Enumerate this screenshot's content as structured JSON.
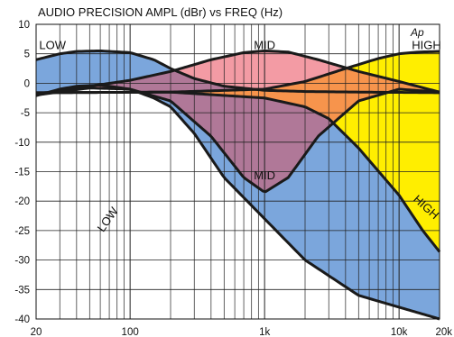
{
  "chart_data": {
    "type": "area",
    "title": "AUDIO PRECISION  AMPL (dBr) vs FREQ (Hz)",
    "logo": "Ap",
    "x_scale": "log",
    "xlim": [
      20,
      20000
    ],
    "ylim": [
      -40,
      10
    ],
    "x_tick_labels": [
      {
        "value": 20,
        "label": "20"
      },
      {
        "value": 100,
        "label": "100"
      },
      {
        "value": 1000,
        "label": "1k"
      },
      {
        "value": 10000,
        "label": "10k"
      },
      {
        "value": 20000,
        "label": "20k"
      }
    ],
    "y_ticks": [
      10,
      5,
      0,
      -5,
      -10,
      -15,
      -20,
      -25,
      -30,
      -35,
      -40
    ],
    "grid": true,
    "colors": {
      "low": "#7ba6dc",
      "mid": "#f39ba4",
      "high": "#ffee00",
      "low_mid_overlap": "#b07898",
      "mid_high_overlap": "#f7944c",
      "curve": "#1a1a1a"
    },
    "series": [
      {
        "name": "LOW",
        "upper": [
          [
            20,
            4.0
          ],
          [
            30,
            5.0
          ],
          [
            40,
            5.4
          ],
          [
            60,
            5.5
          ],
          [
            100,
            5.2
          ],
          [
            150,
            4.0
          ],
          [
            200,
            2.5
          ],
          [
            300,
            0.8
          ],
          [
            500,
            -0.5
          ],
          [
            1000,
            -1.2
          ],
          [
            2000,
            -1.4
          ],
          [
            5000,
            -1.5
          ],
          [
            20000,
            -1.6
          ]
        ],
        "lower": [
          [
            20,
            -2.1
          ],
          [
            30,
            -1.0
          ],
          [
            40,
            -0.5
          ],
          [
            60,
            -0.3
          ],
          [
            100,
            -1.0
          ],
          [
            150,
            -2.5
          ],
          [
            200,
            -4.0
          ],
          [
            300,
            -8.5
          ],
          [
            500,
            -16.0
          ],
          [
            1000,
            -23.0
          ],
          [
            2000,
            -30.0
          ],
          [
            5000,
            -36.0
          ],
          [
            20000,
            -40.0
          ]
        ],
        "label_upper": "LOW",
        "label_lower": "LOW"
      },
      {
        "name": "MID",
        "upper": [
          [
            20,
            -2.0
          ],
          [
            50,
            -0.5
          ],
          [
            100,
            0.5
          ],
          [
            200,
            2.0
          ],
          [
            400,
            4.0
          ],
          [
            700,
            5.2
          ],
          [
            1000,
            5.5
          ],
          [
            1500,
            5.3
          ],
          [
            2500,
            4.0
          ],
          [
            5000,
            2.0
          ],
          [
            10000,
            0.3
          ],
          [
            20000,
            -1.5
          ]
        ],
        "lower": [
          [
            20,
            -2.0
          ],
          [
            50,
            -0.8
          ],
          [
            100,
            -1.0
          ],
          [
            200,
            -3.0
          ],
          [
            400,
            -9.0
          ],
          [
            700,
            -16.0
          ],
          [
            1000,
            -18.5
          ],
          [
            1500,
            -16.0
          ],
          [
            2500,
            -9.0
          ],
          [
            5000,
            -3.0
          ],
          [
            10000,
            -1.0
          ],
          [
            20000,
            -1.5
          ]
        ],
        "label_upper": "MID",
        "label_lower": "MID"
      },
      {
        "name": "HIGH",
        "upper": [
          [
            20,
            -1.6
          ],
          [
            200,
            -1.5
          ],
          [
            1000,
            -1.0
          ],
          [
            2000,
            0.3
          ],
          [
            4000,
            2.5
          ],
          [
            7000,
            4.2
          ],
          [
            10000,
            5.0
          ],
          [
            14000,
            5.3
          ],
          [
            20000,
            5.4
          ]
        ],
        "lower": [
          [
            20,
            -1.6
          ],
          [
            200,
            -1.5
          ],
          [
            1000,
            -2.5
          ],
          [
            2000,
            -4.0
          ],
          [
            3000,
            -6.0
          ],
          [
            5000,
            -11.0
          ],
          [
            10000,
            -19.0
          ],
          [
            15000,
            -25.0
          ],
          [
            20000,
            -28.6
          ]
        ],
        "label_upper": "HIGH",
        "label_lower": "HIGH"
      }
    ]
  }
}
